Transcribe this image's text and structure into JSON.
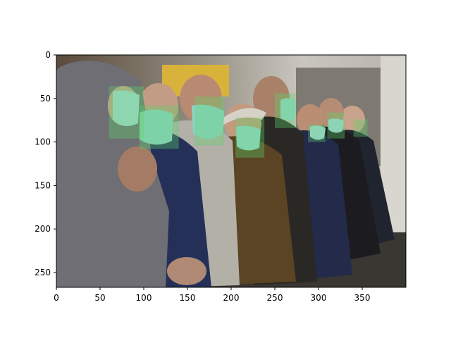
{
  "chart_data": {
    "type": "image",
    "xlim": [
      0,
      400
    ],
    "ylim": [
      0,
      267
    ],
    "y_inverted": true,
    "x_ticks": [
      0,
      50,
      100,
      150,
      200,
      250,
      300,
      350
    ],
    "y_ticks": [
      0,
      50,
      100,
      150,
      200,
      250
    ],
    "image_content": "photo of elderly people seated on a bench wearing surgical face masks",
    "overlay_color": "#5fd36a",
    "detections": [
      {
        "x0": 60,
        "y0": 36,
        "x1": 100,
        "y1": 96
      },
      {
        "x0": 95,
        "y0": 58,
        "x1": 140,
        "y1": 108
      },
      {
        "x0": 158,
        "y0": 48,
        "x1": 192,
        "y1": 104
      },
      {
        "x0": 205,
        "y0": 72,
        "x1": 238,
        "y1": 118
      },
      {
        "x0": 250,
        "y0": 44,
        "x1": 274,
        "y1": 84
      },
      {
        "x0": 288,
        "y0": 80,
        "x1": 308,
        "y1": 100
      },
      {
        "x0": 310,
        "y0": 66,
        "x1": 330,
        "y1": 96
      },
      {
        "x0": 340,
        "y0": 74,
        "x1": 356,
        "y1": 94
      }
    ]
  }
}
